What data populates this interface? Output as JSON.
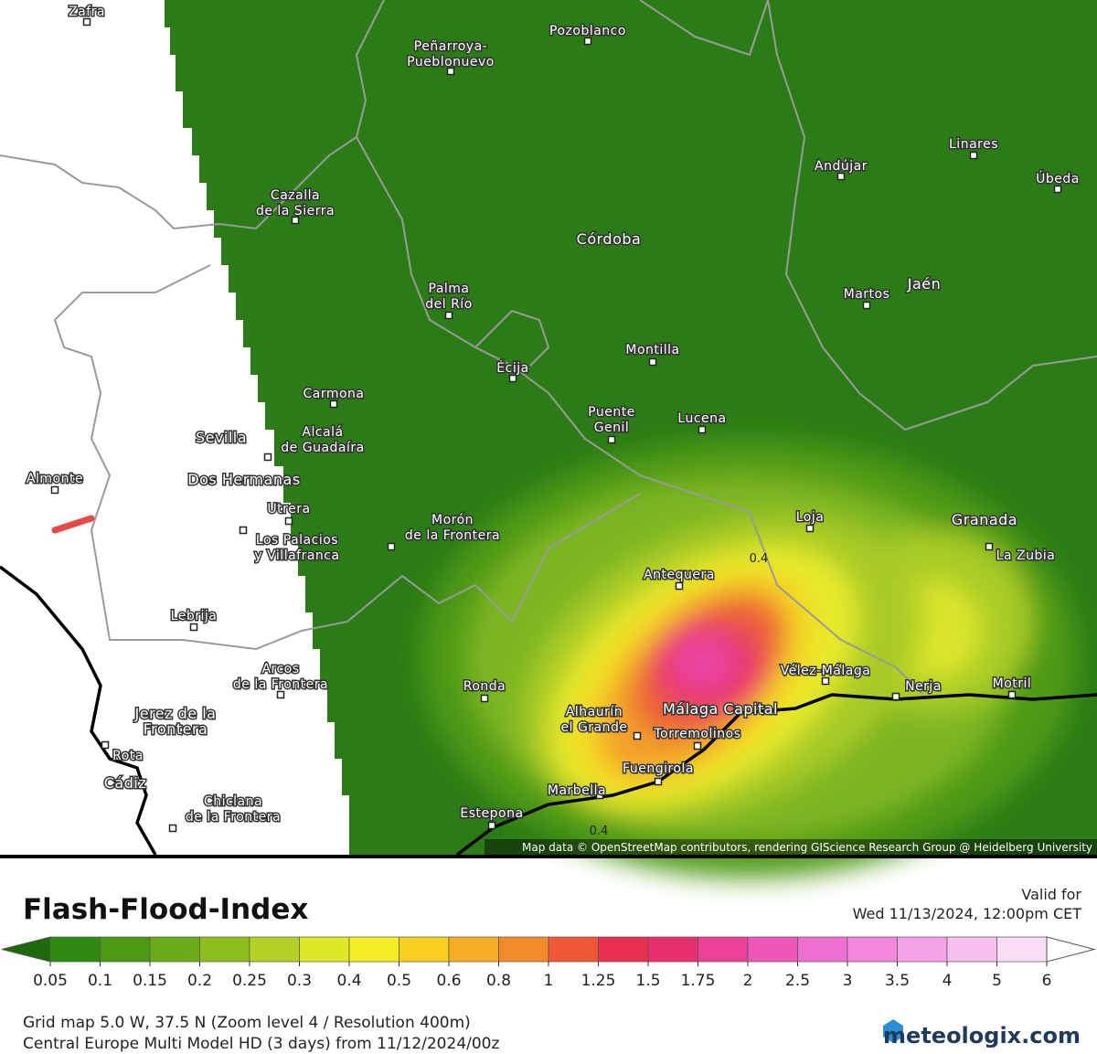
{
  "map": {
    "places": [
      {
        "lines": [
          "Zafra"
        ]
      },
      {
        "lines": [
          "Peñarroya-",
          "Pueblonuevo"
        ]
      },
      {
        "lines": [
          "Pozoblanco"
        ]
      },
      {
        "lines": [
          "Linares"
        ]
      },
      {
        "lines": [
          "Andújar"
        ]
      },
      {
        "lines": [
          "Úbeda"
        ]
      },
      {
        "lines": [
          "Cazalla",
          "de la Sierra"
        ]
      },
      {
        "lines": [
          "Córdoba"
        ]
      },
      {
        "lines": [
          "Palma",
          "del Río"
        ]
      },
      {
        "lines": [
          "Martos"
        ]
      },
      {
        "lines": [
          "Jaén"
        ]
      },
      {
        "lines": [
          "Montilla"
        ]
      },
      {
        "lines": [
          "Écija"
        ]
      },
      {
        "lines": [
          "Carmona"
        ]
      },
      {
        "lines": [
          "Sevilla"
        ]
      },
      {
        "lines": [
          "Alcalá",
          "de Guadaíra"
        ]
      },
      {
        "lines": [
          "Puente",
          "Genil"
        ]
      },
      {
        "lines": [
          "Lucena"
        ]
      },
      {
        "lines": [
          "Almonte"
        ]
      },
      {
        "lines": [
          "Dos Hermanas"
        ]
      },
      {
        "lines": [
          "Utrera"
        ]
      },
      {
        "lines": [
          "Los Palacios",
          "y Villafranca"
        ]
      },
      {
        "lines": [
          "Morón",
          "de la Frontera"
        ]
      },
      {
        "lines": [
          "Loja"
        ]
      },
      {
        "lines": [
          "Granada"
        ]
      },
      {
        "lines": [
          "La Zubia"
        ]
      },
      {
        "lines": [
          "Antequera"
        ]
      },
      {
        "lines": [
          "Lebrija"
        ]
      },
      {
        "lines": [
          "Arcos",
          "de la Frontera"
        ]
      },
      {
        "lines": [
          "Vélez-Málaga"
        ]
      },
      {
        "lines": [
          "Nerja"
        ]
      },
      {
        "lines": [
          "Motril"
        ]
      },
      {
        "lines": [
          "Ronda"
        ]
      },
      {
        "lines": [
          "Jerez de la",
          "Frontera"
        ]
      },
      {
        "lines": [
          "Alhaurín",
          "el Grande"
        ]
      },
      {
        "lines": [
          "Málaga Capital"
        ]
      },
      {
        "lines": [
          "Torremolinos"
        ]
      },
      {
        "lines": [
          "Rota"
        ]
      },
      {
        "lines": [
          "Fuengirola"
        ]
      },
      {
        "lines": [
          "Cádiz"
        ]
      },
      {
        "lines": [
          "Marbella"
        ]
      },
      {
        "lines": [
          "Chiclana",
          "de la Frontera"
        ]
      },
      {
        "lines": [
          "Estepona"
        ]
      }
    ],
    "contour_labels": [
      "0.4",
      "0.4"
    ],
    "attribution": "Map data © OpenStreetMap contributors, rendering GIScience Research Group @ Heidelberg University"
  },
  "legend": {
    "title": "Flash-Flood-Index",
    "valid_label": "Valid for",
    "valid_time": "Wed 11/13/2024, 12:00pm CET",
    "labels": [
      "0.05",
      "0.1",
      "0.15",
      "0.2",
      "0.25",
      "0.3",
      "0.4",
      "0.5",
      "0.6",
      "0.8",
      "1",
      "1.25",
      "1.5",
      "1.75",
      "2",
      "2.5",
      "3",
      "3.5",
      "4",
      "5",
      "6"
    ],
    "colors": [
      "#2f8a12",
      "#4c9a14",
      "#6aac18",
      "#8cbe1e",
      "#b3d225",
      "#dfe826",
      "#f5ee22",
      "#f7d01f",
      "#f5ae24",
      "#f28a2c",
      "#ee5a38",
      "#e8304e",
      "#e8306f",
      "#ea4096",
      "#ec57b8",
      "#ef6fd0",
      "#f287dc",
      "#f5a2e6",
      "#f8c0ef",
      "#fadcf6"
    ],
    "low_color": "#1c6a0a",
    "footer": [
      "Grid map 5.0 W, 37.5 N (Zoom level 4 / Resolution 400m)",
      "Central Europe Multi Model HD (3 days) from 11/12/2024/00z"
    ],
    "brand": "meteologix.com"
  }
}
